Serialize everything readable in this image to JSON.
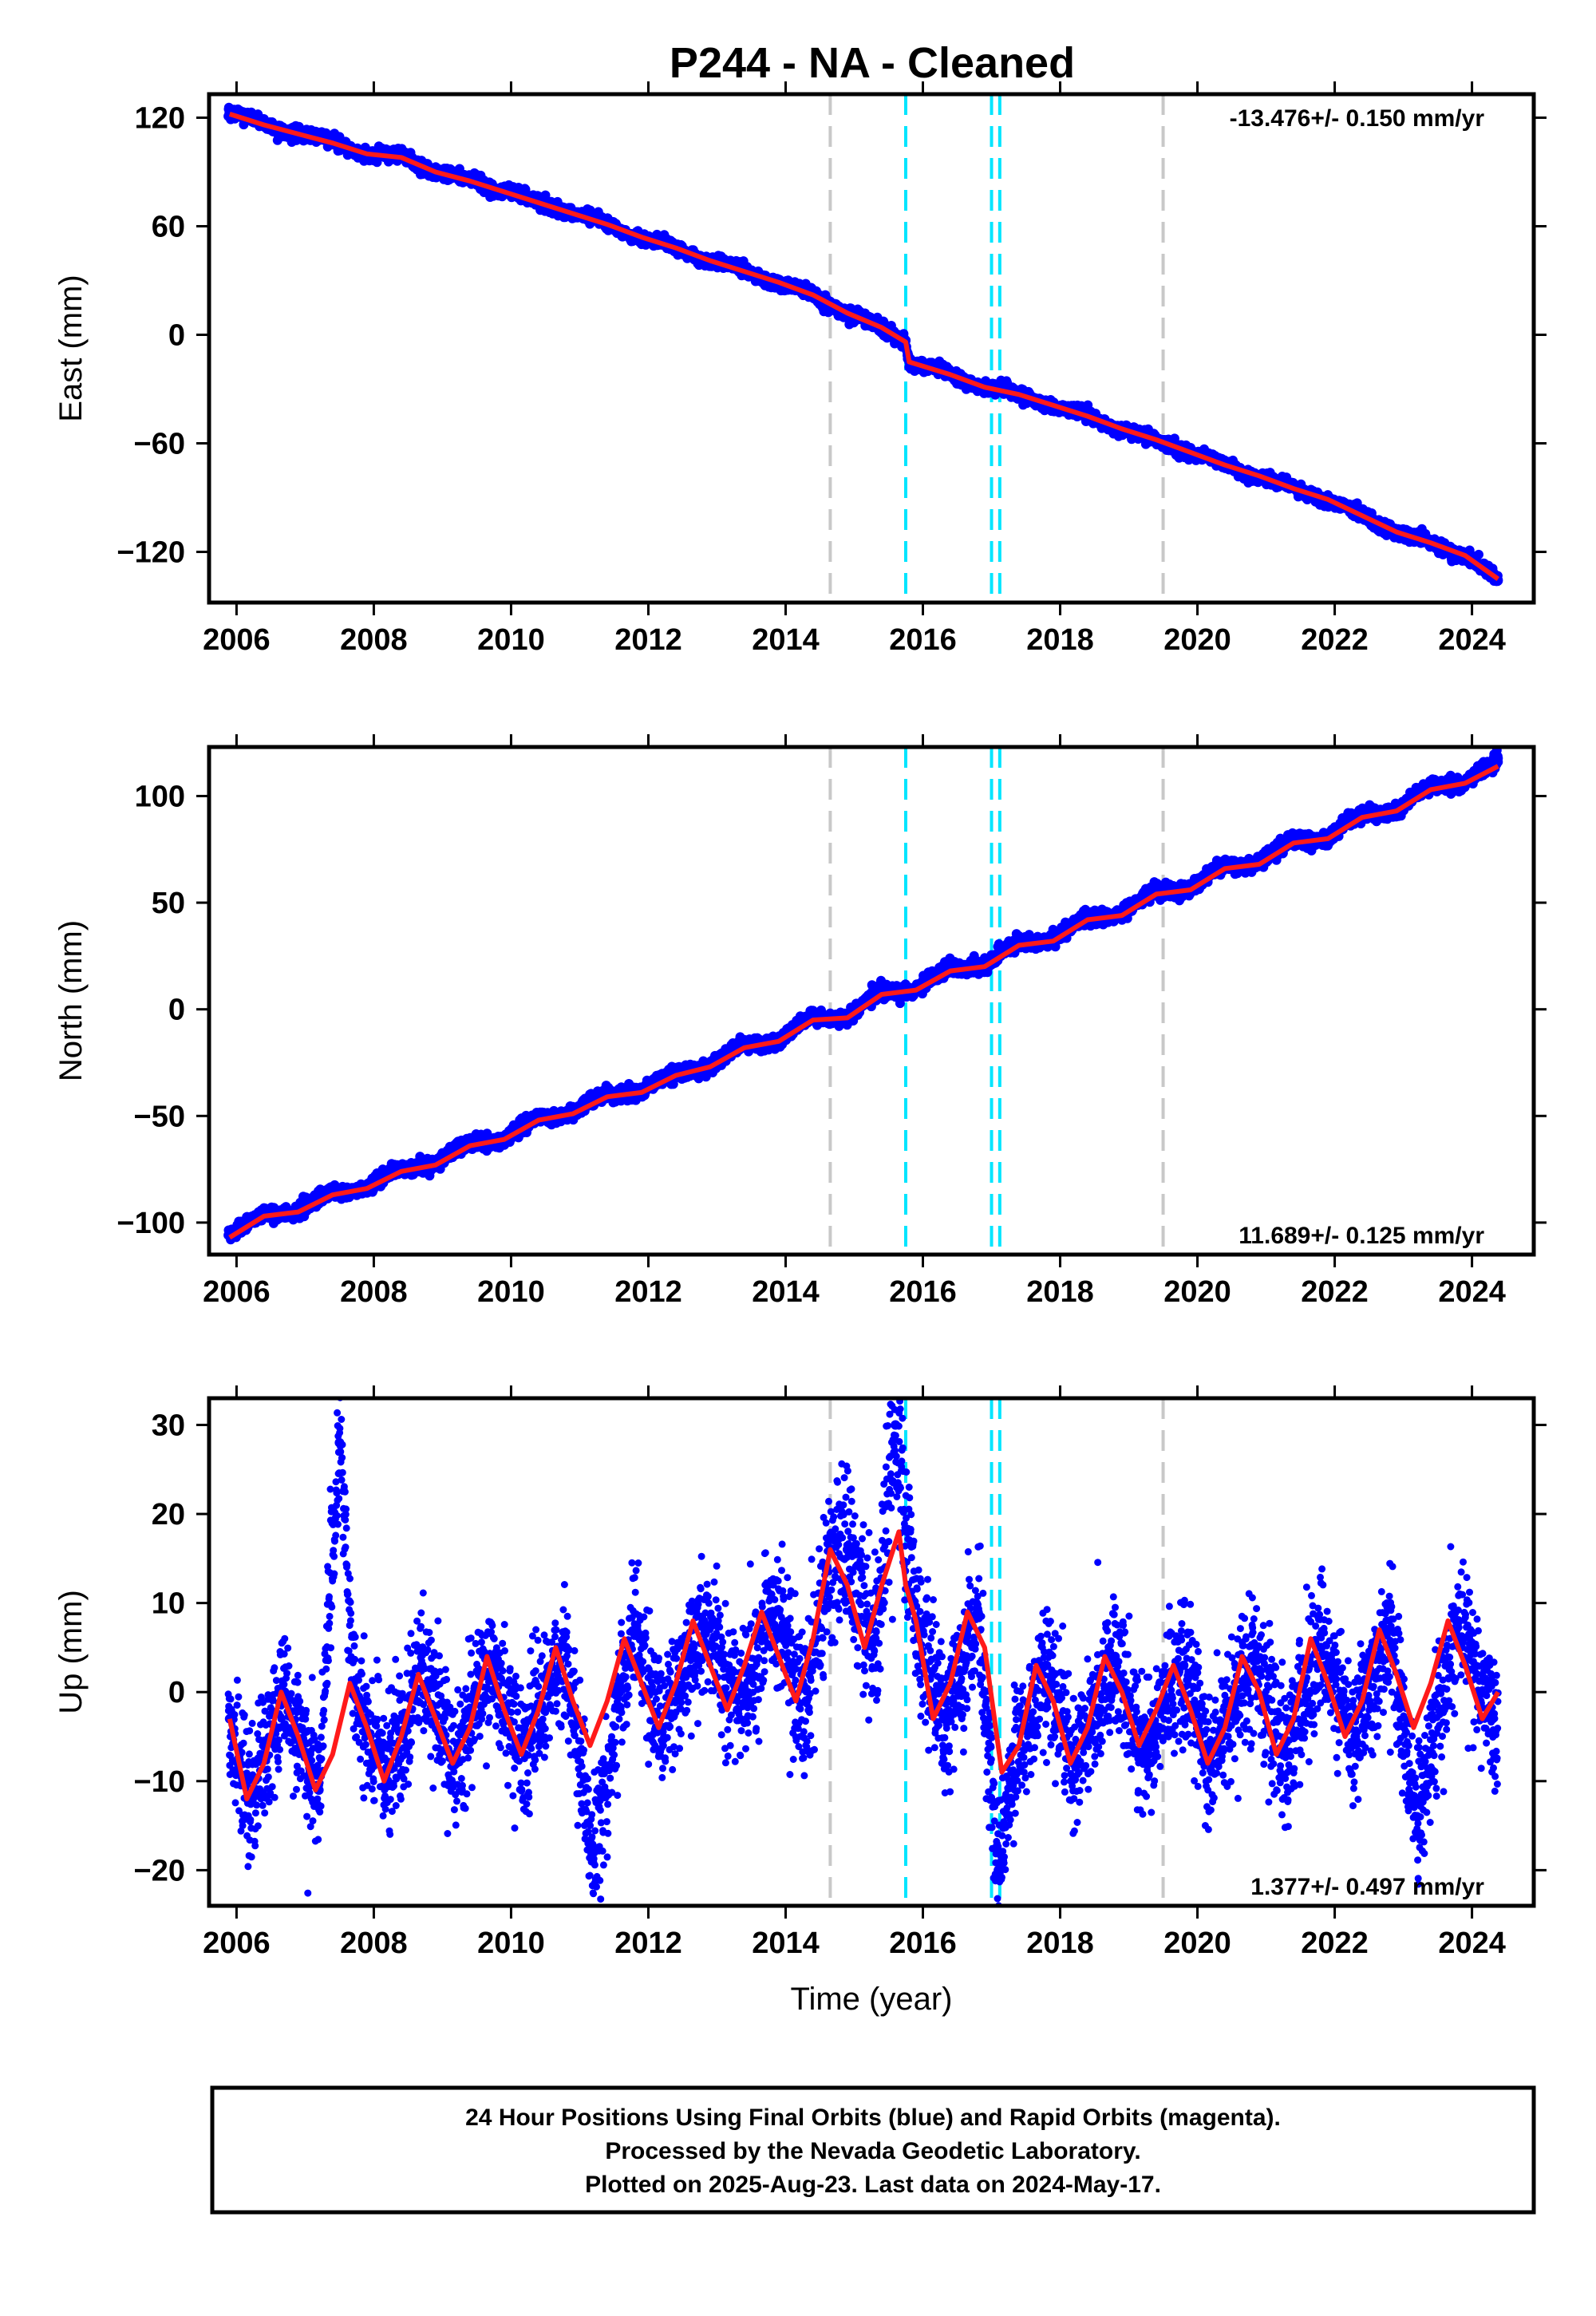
{
  "title": "P244  - NA - Cleaned",
  "footer": {
    "lines": [
      "24 Hour Positions Using Final Orbits (blue) and Rapid Orbits (magenta).",
      "Processed by the Nevada Geodetic Laboratory.",
      "Plotted on 2025-Aug-23. Last data on 2024-May-17."
    ]
  },
  "colors": {
    "data_points": "#0000ff",
    "model_fit": "#ff1a1a",
    "equipment_change": "#c8c8c8",
    "earthquake": "#00e5ff"
  },
  "chart_data": [
    {
      "type": "scatter",
      "name": "east",
      "ylabel": "East (mm)",
      "xlabel": "",
      "xlim": [
        2005.6,
        2024.9
      ],
      "ylim": [
        -148,
        133
      ],
      "xticks": [
        2006,
        2008,
        2010,
        2012,
        2014,
        2016,
        2018,
        2020,
        2022,
        2024
      ],
      "yticks": [
        -120,
        -60,
        0,
        60,
        120
      ],
      "ytick_labels": [
        "−120",
        "−60",
        "0",
        "60",
        "120"
      ],
      "rate_label": "-13.476+/- 0.150 mm/yr",
      "rate_position": "top-right",
      "x_start": 2005.88,
      "x_end": 2024.38,
      "series": [
        {
          "role": "points",
          "x": [
            2005.9,
            2006.4,
            2006.9,
            2007.4,
            2007.9,
            2008.4,
            2008.9,
            2009.4,
            2009.9,
            2010.4,
            2010.9,
            2011.4,
            2011.9,
            2012.4,
            2012.9,
            2013.4,
            2013.9,
            2014.4,
            2014.9,
            2015.4,
            2015.75,
            2015.8,
            2016.4,
            2016.9,
            2017.4,
            2017.9,
            2018.4,
            2018.9,
            2019.4,
            2019.9,
            2020.4,
            2020.9,
            2021.4,
            2021.9,
            2022.4,
            2022.9,
            2023.4,
            2023.9,
            2024.38
          ],
          "y": [
            123,
            116,
            111,
            107,
            100,
            99,
            90,
            85,
            80,
            73,
            68,
            61,
            54,
            48,
            41,
            35,
            29,
            22,
            12,
            4,
            -3,
            -15,
            -22,
            -29,
            -33,
            -39,
            -45,
            -52,
            -58,
            -65,
            -72,
            -78,
            -85,
            -91,
            -100,
            -109,
            -115,
            -122,
            -136
          ]
        },
        {
          "role": "fit",
          "x": [
            2005.9,
            2006.4,
            2006.9,
            2007.4,
            2007.9,
            2008.4,
            2008.9,
            2009.4,
            2009.9,
            2010.4,
            2010.9,
            2011.4,
            2011.9,
            2012.4,
            2012.9,
            2013.4,
            2013.9,
            2014.4,
            2014.9,
            2015.4,
            2015.75,
            2015.8,
            2016.4,
            2016.9,
            2017.4,
            2017.9,
            2018.4,
            2018.9,
            2019.4,
            2019.9,
            2020.4,
            2020.9,
            2021.4,
            2021.9,
            2022.4,
            2022.9,
            2023.4,
            2023.9,
            2024.38
          ],
          "y": [
            122,
            116,
            111,
            106,
            100,
            98,
            90,
            85,
            79,
            73,
            67,
            61,
            54,
            48,
            41,
            35,
            29,
            22,
            12,
            4,
            -4,
            -15,
            -22,
            -29,
            -33,
            -39,
            -45,
            -52,
            -58,
            -65,
            -72,
            -78,
            -85,
            -91,
            -100,
            -109,
            -115,
            -122,
            -135
          ]
        }
      ],
      "event_lines": [
        {
          "x": 2014.65,
          "kind": "equipment_change"
        },
        {
          "x": 2015.75,
          "kind": "earthquake"
        },
        {
          "x": 2017.0,
          "kind": "earthquake"
        },
        {
          "x": 2017.12,
          "kind": "earthquake"
        },
        {
          "x": 2019.5,
          "kind": "equipment_change"
        }
      ]
    },
    {
      "type": "scatter",
      "name": "north",
      "ylabel": "North (mm)",
      "xlabel": "",
      "xlim": [
        2005.6,
        2024.9
      ],
      "ylim": [
        -115,
        123
      ],
      "xticks": [
        2006,
        2008,
        2010,
        2012,
        2014,
        2016,
        2018,
        2020,
        2022,
        2024
      ],
      "yticks": [
        -100,
        -50,
        0,
        50,
        100
      ],
      "ytick_labels": [
        "−100",
        "−50",
        "0",
        "50",
        "100"
      ],
      "rate_label": "11.689+/- 0.125 mm/yr",
      "rate_position": "bottom-right",
      "x_start": 2005.88,
      "x_end": 2024.38,
      "series": [
        {
          "role": "points",
          "x": [
            2005.9,
            2006.4,
            2006.9,
            2007.4,
            2007.9,
            2008.4,
            2008.9,
            2009.4,
            2009.9,
            2010.4,
            2010.9,
            2011.4,
            2011.9,
            2012.4,
            2012.9,
            2013.4,
            2013.9,
            2014.4,
            2014.9,
            2015.4,
            2015.9,
            2016.4,
            2016.9,
            2017.4,
            2017.9,
            2018.4,
            2018.9,
            2019.4,
            2019.9,
            2020.4,
            2020.9,
            2021.4,
            2021.9,
            2022.4,
            2022.9,
            2023.4,
            2023.9,
            2024.38
          ],
          "y": [
            -106,
            -96,
            -94,
            -86,
            -83,
            -75,
            -72,
            -63,
            -60,
            -51,
            -48,
            -40,
            -38,
            -30,
            -26,
            -17,
            -14,
            -4,
            -3,
            8,
            10,
            19,
            21,
            31,
            33,
            43,
            45,
            55,
            57,
            67,
            69,
            79,
            81,
            91,
            94,
            104,
            107,
            116
          ]
        },
        {
          "role": "fit",
          "x": [
            2005.9,
            2006.4,
            2006.9,
            2007.4,
            2007.9,
            2008.4,
            2008.9,
            2009.4,
            2009.9,
            2010.4,
            2010.9,
            2011.4,
            2011.9,
            2012.4,
            2012.9,
            2013.4,
            2013.9,
            2014.4,
            2014.9,
            2015.4,
            2015.9,
            2016.4,
            2016.9,
            2017.4,
            2017.9,
            2018.4,
            2018.9,
            2019.4,
            2019.9,
            2020.4,
            2020.9,
            2021.4,
            2021.9,
            2022.4,
            2022.9,
            2023.4,
            2023.9,
            2024.38
          ],
          "y": [
            -107,
            -97,
            -95,
            -87,
            -84,
            -76,
            -73,
            -64,
            -61,
            -52,
            -49,
            -41,
            -39,
            -31,
            -27,
            -18,
            -15,
            -5,
            -4,
            7,
            9,
            18,
            20,
            30,
            32,
            42,
            44,
            54,
            56,
            66,
            68,
            78,
            80,
            90,
            93,
            103,
            106,
            114
          ]
        }
      ],
      "event_lines": [
        {
          "x": 2014.65,
          "kind": "equipment_change"
        },
        {
          "x": 2015.75,
          "kind": "earthquake"
        },
        {
          "x": 2017.0,
          "kind": "earthquake"
        },
        {
          "x": 2017.12,
          "kind": "earthquake"
        },
        {
          "x": 2019.5,
          "kind": "equipment_change"
        }
      ]
    },
    {
      "type": "scatter",
      "name": "up",
      "ylabel": "Up (mm)",
      "xlabel": "Time (year)",
      "xlim": [
        2005.6,
        2024.9
      ],
      "ylim": [
        -24,
        33
      ],
      "xticks": [
        2006,
        2008,
        2010,
        2012,
        2014,
        2016,
        2018,
        2020,
        2022,
        2024
      ],
      "yticks": [
        -20,
        -10,
        0,
        10,
        20,
        30
      ],
      "ytick_labels": [
        "−20",
        "−10",
        "0",
        "10",
        "20",
        "30"
      ],
      "rate_label": "1.377+/- 0.497 mm/yr",
      "rate_position": "bottom-right",
      "x_start": 2005.88,
      "x_end": 2024.38,
      "series": [
        {
          "role": "points",
          "x": [
            2005.9,
            2006.2,
            2006.7,
            2007.2,
            2007.5,
            2007.7,
            2008.2,
            2008.7,
            2009.2,
            2009.7,
            2010.2,
            2010.8,
            2011.2,
            2011.8,
            2012.2,
            2012.8,
            2013.3,
            2013.8,
            2014.3,
            2014.6,
            2014.9,
            2015.3,
            2015.6,
            2015.9,
            2016.3,
            2016.8,
            2017.1,
            2017.3,
            2017.8,
            2018.2,
            2018.8,
            2019.2,
            2019.8,
            2020.2,
            2020.8,
            2021.3,
            2021.8,
            2022.3,
            2022.8,
            2023.2,
            2023.8,
            2024.3
          ],
          "y": [
            -3,
            -12,
            0,
            -11,
            28,
            1,
            -10,
            3,
            -8,
            4,
            -7,
            5,
            -18,
            7,
            -4,
            8,
            -2,
            9,
            -1,
            14,
            16,
            6,
            30,
            8,
            -3,
            9,
            -20,
            -9,
            3,
            -8,
            4,
            -7,
            3,
            -8,
            4,
            -7,
            5,
            -5,
            7,
            -14,
            8,
            -3
          ]
        },
        {
          "role": "fit",
          "x": [
            2005.9,
            2006.15,
            2006.4,
            2006.65,
            2006.9,
            2007.15,
            2007.4,
            2007.65,
            2007.9,
            2008.15,
            2008.4,
            2008.65,
            2008.9,
            2009.15,
            2009.4,
            2009.65,
            2009.9,
            2010.15,
            2010.4,
            2010.65,
            2010.9,
            2011.15,
            2011.4,
            2011.65,
            2011.9,
            2012.15,
            2012.4,
            2012.65,
            2012.9,
            2013.15,
            2013.4,
            2013.65,
            2013.9,
            2014.15,
            2014.4,
            2014.65,
            2014.9,
            2015.15,
            2015.4,
            2015.65,
            2015.75,
            2015.9,
            2016.15,
            2016.4,
            2016.65,
            2016.9,
            2017.15,
            2017.4,
            2017.65,
            2017.9,
            2018.15,
            2018.4,
            2018.65,
            2018.9,
            2019.15,
            2019.4,
            2019.65,
            2019.9,
            2020.15,
            2020.4,
            2020.65,
            2020.9,
            2021.15,
            2021.4,
            2021.65,
            2021.9,
            2022.15,
            2022.4,
            2022.65,
            2022.9,
            2023.15,
            2023.4,
            2023.65,
            2023.9,
            2024.15,
            2024.38
          ],
          "y": [
            -3,
            -12,
            -8,
            0,
            -5,
            -11,
            -7,
            1,
            -4,
            -10,
            -5,
            2,
            -3,
            -8,
            -4,
            4,
            -2,
            -7,
            -2,
            5,
            -1,
            -6,
            -1,
            6,
            1,
            -4,
            1,
            8,
            3,
            -2,
            3,
            9,
            4,
            -1,
            6,
            16,
            12,
            5,
            12,
            18,
            12,
            8,
            -3,
            1,
            9,
            5,
            -9,
            -6,
            3,
            -1,
            -8,
            -4,
            4,
            0,
            -6,
            -2,
            3,
            -2,
            -8,
            -4,
            4,
            0,
            -7,
            -3,
            6,
            1,
            -5,
            -1,
            7,
            2,
            -4,
            1,
            8,
            3,
            -3,
            0
          ]
        }
      ],
      "event_lines": [
        {
          "x": 2014.65,
          "kind": "equipment_change"
        },
        {
          "x": 2015.75,
          "kind": "earthquake"
        },
        {
          "x": 2017.0,
          "kind": "earthquake"
        },
        {
          "x": 2017.12,
          "kind": "earthquake"
        },
        {
          "x": 2019.5,
          "kind": "equipment_change"
        }
      ]
    }
  ]
}
